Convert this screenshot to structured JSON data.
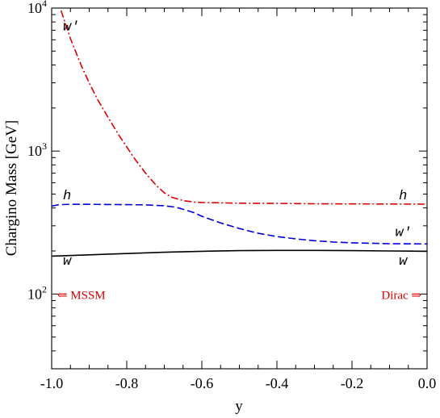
{
  "chart_data": {
    "type": "line",
    "xlabel": "y",
    "ylabel": "Chargino Mass [GeV]",
    "xlim": [
      -1.0,
      0.0
    ],
    "ylim": [
      30,
      10000
    ],
    "yscale": "log",
    "grid": false,
    "x_ticks": [
      {
        "value": -1.0,
        "label": "-1.0"
      },
      {
        "value": -0.8,
        "label": "-0.8"
      },
      {
        "value": -0.6,
        "label": "-0.6"
      },
      {
        "value": -0.4,
        "label": "-0.4"
      },
      {
        "value": -0.2,
        "label": "-0.2"
      },
      {
        "value": 0.0,
        "label": "0.0"
      }
    ],
    "y_ticks": [
      {
        "value": 100,
        "base": "10",
        "exp": "2"
      },
      {
        "value": 1000,
        "base": "10",
        "exp": "3"
      },
      {
        "value": 10000,
        "base": "10",
        "exp": "4"
      }
    ],
    "series": [
      {
        "color": "#dd0000",
        "dash": "dash-dot",
        "x": [
          -0.975,
          -0.95,
          -0.92,
          -0.9,
          -0.88,
          -0.85,
          -0.82,
          -0.8,
          -0.78,
          -0.75,
          -0.72,
          -0.7,
          -0.68,
          -0.65,
          -0.62,
          -0.6,
          -0.55,
          -0.5,
          -0.4,
          -0.3,
          -0.2,
          -0.1,
          0.0
        ],
        "y": [
          9600,
          6100,
          3900,
          3000,
          2350,
          1720,
          1280,
          1070,
          890,
          700,
          570,
          510,
          475,
          450,
          440,
          437,
          434,
          432,
          430,
          428,
          427,
          426,
          425
        ]
      },
      {
        "color": "#0000dd",
        "dash": "dash",
        "x": [
          -1.0,
          -0.98,
          -0.95,
          -0.9,
          -0.85,
          -0.8,
          -0.75,
          -0.7,
          -0.67,
          -0.64,
          -0.62,
          -0.6,
          -0.55,
          -0.5,
          -0.45,
          -0.4,
          -0.35,
          -0.3,
          -0.25,
          -0.2,
          -0.1,
          0.0
        ],
        "y": [
          412,
          422,
          424,
          424,
          423,
          422,
          420,
          414,
          405,
          385,
          370,
          350,
          314,
          287,
          266,
          252,
          243,
          236,
          231,
          228,
          225,
          224
        ]
      },
      {
        "color": "#000000",
        "dash": "solid",
        "x": [
          -1.0,
          -0.9,
          -0.8,
          -0.7,
          -0.6,
          -0.5,
          -0.4,
          -0.3,
          -0.2,
          -0.1,
          0.0
        ],
        "y": [
          184,
          188,
          192,
          196,
          199,
          201,
          202,
          202,
          201,
          200,
          199
        ]
      }
    ],
    "curve_labels": [
      {
        "text": "w′",
        "x": -0.97,
        "y": 7000
      },
      {
        "text": "h",
        "x": -0.97,
        "y": 460
      },
      {
        "text": "w",
        "x": -0.97,
        "y": 160
      },
      {
        "text": "h",
        "x": -0.075,
        "y": 460
      },
      {
        "text": "w′",
        "x": -0.085,
        "y": 255
      },
      {
        "text": "w",
        "x": -0.075,
        "y": 160
      }
    ],
    "annotations": [
      {
        "text": "⇐ MSSM",
        "color": "#dd0000",
        "x": -0.985,
        "y": 100,
        "anchor": "start"
      },
      {
        "text": "Dirac ⇒",
        "color": "#dd0000",
        "x": -0.015,
        "y": 100,
        "anchor": "end"
      }
    ]
  }
}
